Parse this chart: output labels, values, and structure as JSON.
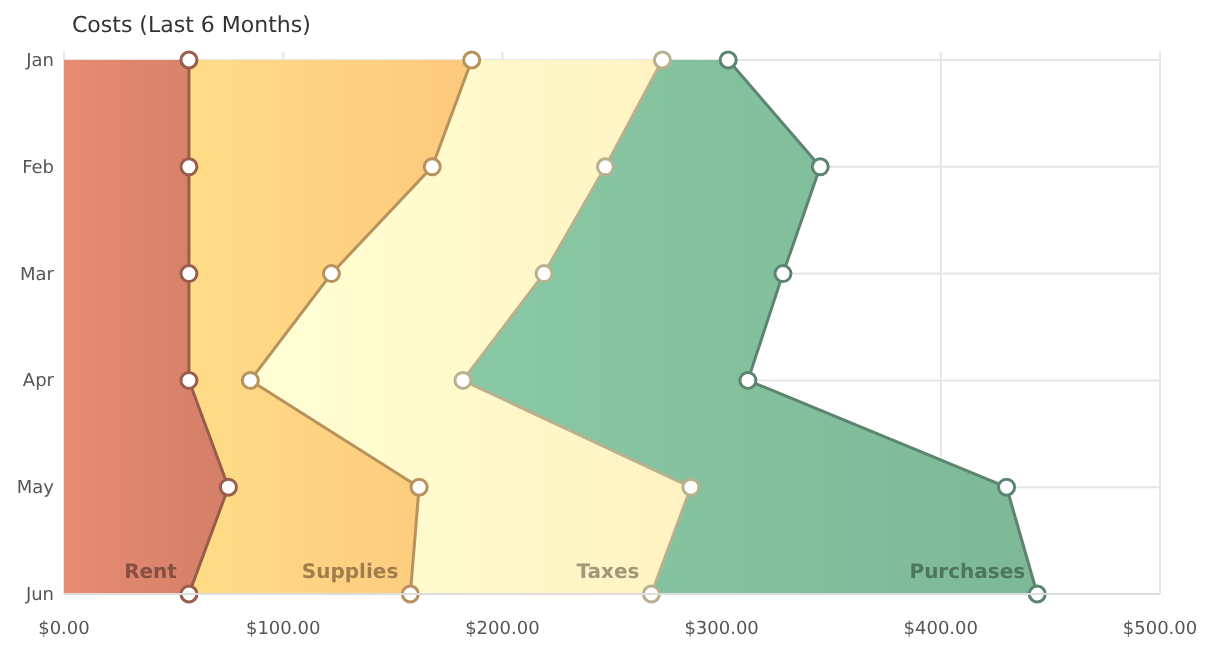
{
  "chart_data": {
    "type": "area",
    "title": "Costs (Last 6 Months)",
    "orientation": "horizontal",
    "stacked": true,
    "categories": [
      "Jan",
      "Feb",
      "Mar",
      "Apr",
      "May",
      "Jun"
    ],
    "series": [
      {
        "name": "Rent",
        "color": "#d47f68",
        "values": [
          57,
          57,
          57,
          57,
          75,
          57
        ]
      },
      {
        "name": "Supplies",
        "color": "#fdc97c",
        "values": [
          129,
          111,
          65,
          28,
          87,
          101
        ]
      },
      {
        "name": "Taxes",
        "color": "#fff2c2",
        "values": [
          87,
          79,
          97,
          97,
          124,
          110
        ]
      },
      {
        "name": "Purchases",
        "color": "#7db897",
        "values": [
          30,
          98,
          109,
          130,
          144,
          176
        ]
      }
    ],
    "xlim": [
      0,
      500
    ],
    "xticks": [
      {
        "value": 0,
        "label": "$0.00"
      },
      {
        "value": 100,
        "label": "$100.00"
      },
      {
        "value": 200,
        "label": "$200.00"
      },
      {
        "value": 300,
        "label": "$300.00"
      },
      {
        "value": 400,
        "label": "$400.00"
      },
      {
        "value": 500,
        "label": "$500.00"
      }
    ],
    "grid": true,
    "marker": "circle"
  }
}
